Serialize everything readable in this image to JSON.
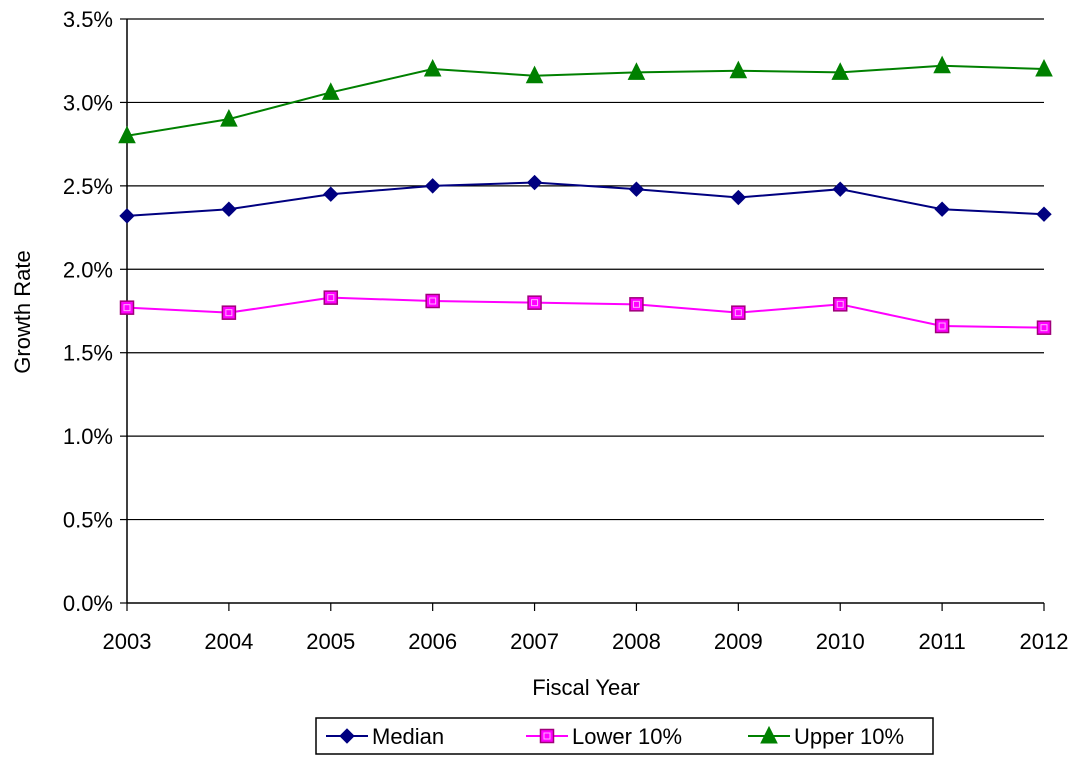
{
  "chart_data": {
    "type": "line",
    "title": "",
    "xlabel": "Fiscal Year",
    "ylabel": "Growth Rate",
    "categories": [
      "2003",
      "2004",
      "2005",
      "2006",
      "2007",
      "2008",
      "2009",
      "2010",
      "2011",
      "2012"
    ],
    "ylim": [
      0,
      3.5
    ],
    "y_ticks": [
      0,
      0.5,
      1.0,
      1.5,
      2.0,
      2.5,
      3.0,
      3.5
    ],
    "y_tick_labels": [
      "0.0%",
      "0.5%",
      "1.0%",
      "1.5%",
      "2.0%",
      "2.5%",
      "3.0%",
      "3.5%"
    ],
    "grid": "horizontal",
    "legend_position": "bottom",
    "series": [
      {
        "name": "Median",
        "color": "#000080",
        "marker": "diamond",
        "values": [
          2.32,
          2.36,
          2.45,
          2.5,
          2.52,
          2.48,
          2.43,
          2.48,
          2.36,
          2.33
        ]
      },
      {
        "name": "Lower 10%",
        "color": "#FF00FF",
        "marker": "square",
        "values": [
          1.77,
          1.74,
          1.83,
          1.81,
          1.8,
          1.79,
          1.74,
          1.79,
          1.66,
          1.65
        ]
      },
      {
        "name": "Upper 10%",
        "color": "#008000",
        "marker": "triangle",
        "values": [
          2.8,
          2.9,
          3.06,
          3.2,
          3.16,
          3.18,
          3.19,
          3.18,
          3.22,
          3.2
        ]
      }
    ]
  }
}
